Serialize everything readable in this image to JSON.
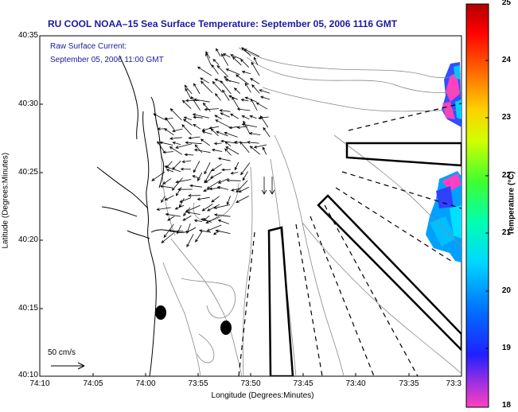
{
  "title": "RU COOL  NOAA–15  Sea Surface Temperature:  September 05, 2006 1116 GMT",
  "current_note": {
    "line1": "Raw Surface Current:",
    "line2": "September 05, 2006 11:00 GMT"
  },
  "axes": {
    "xlabel": "Longitude (Degrees:Minutes)",
    "ylabel": "Latitude (Degrees:Minutes)",
    "xticks": [
      "74:10",
      "74:05",
      "74:00",
      "73:55",
      "73:50",
      "73:45",
      "73:40",
      "73:35",
      "73:3"
    ],
    "yticks": [
      "40:35",
      "40:30",
      "40:25",
      "40:20",
      "40:15",
      "40:10"
    ]
  },
  "colorbar": {
    "label": "Temperature (°C)",
    "ticks": [
      "25",
      "24",
      "23",
      "22",
      "21",
      "20",
      "19",
      "18"
    ],
    "min": 18,
    "max": 25,
    "colors": [
      "#ff40c0",
      "#8020ff",
      "#0000ff",
      "#00a0ff",
      "#00ffe0",
      "#40ff40",
      "#d0ff00",
      "#ffd000",
      "#ff6000",
      "#ff0000",
      "#a00000"
    ]
  },
  "scale_arrow": {
    "label": "50 cm/s"
  },
  "colors": {
    "coast": "#000000",
    "bathymetry": "#888888",
    "title_text": "#1a1aa0",
    "sst_warm": "#ff40c0",
    "sst_mid": "#3060ff",
    "sst_cool": "#00d0ff"
  }
}
